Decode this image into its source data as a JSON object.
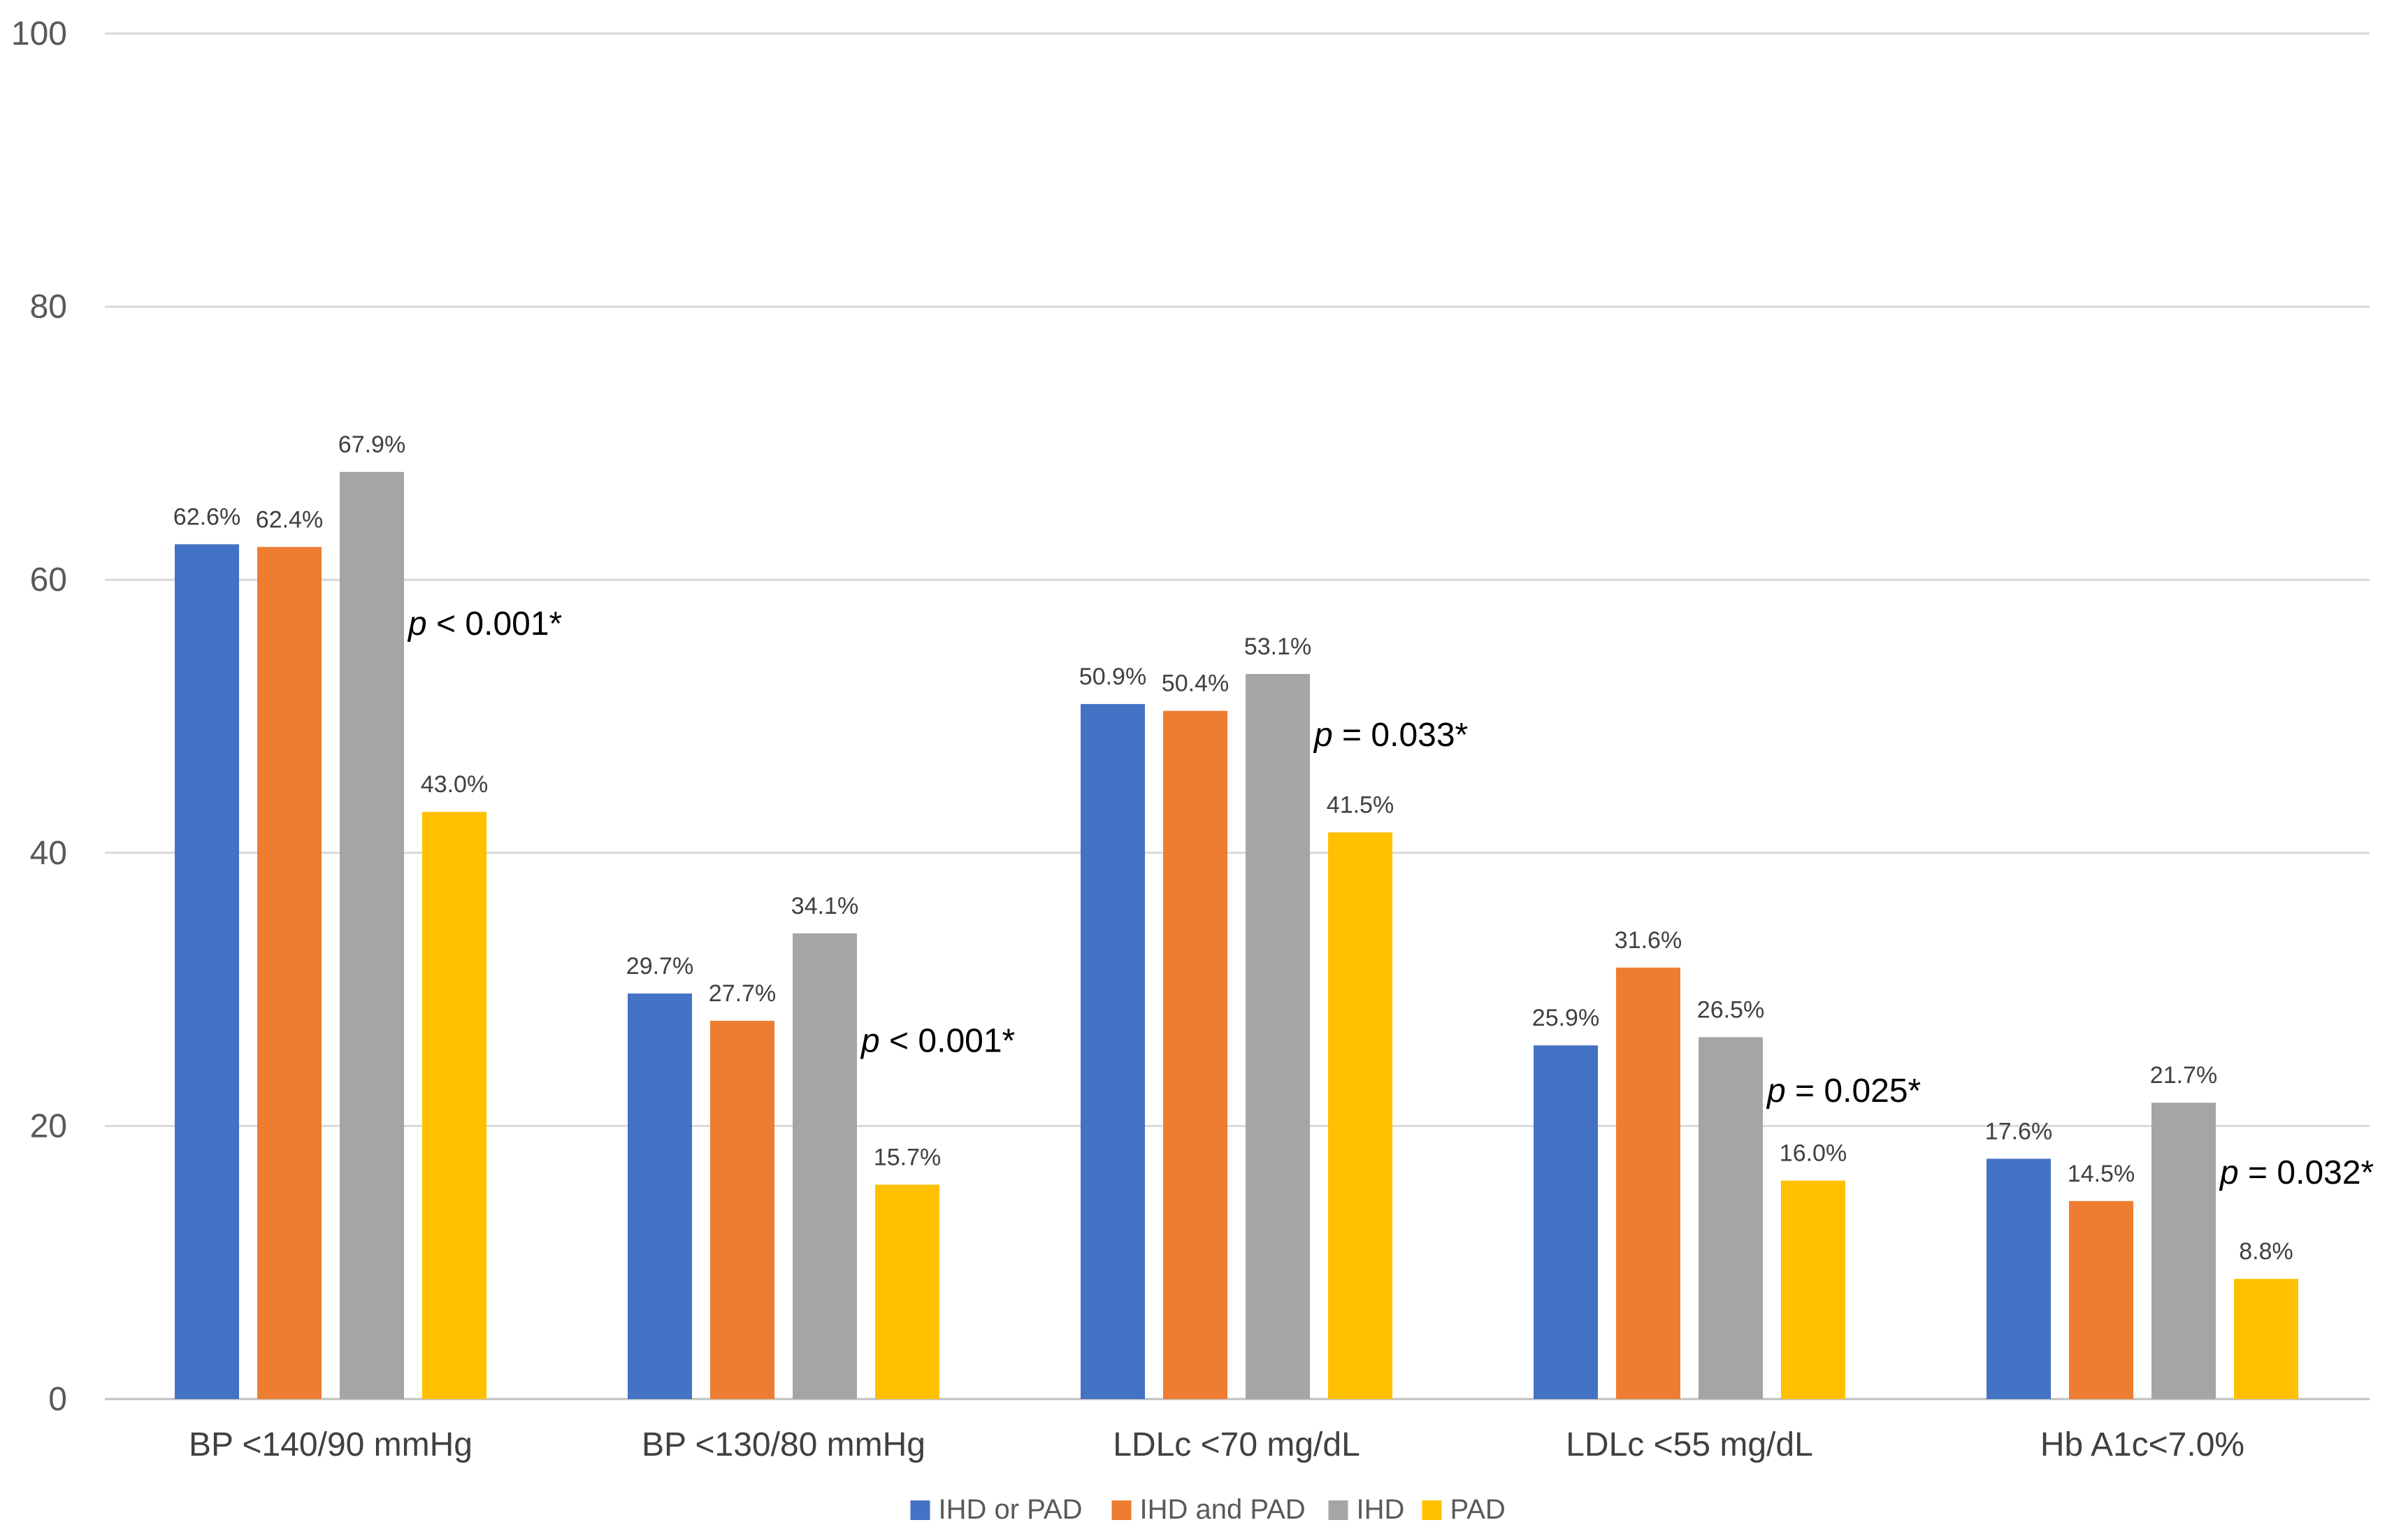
{
  "chart_data": {
    "type": "bar",
    "title": "",
    "xlabel": "",
    "ylabel": "",
    "ylim": [
      0,
      100
    ],
    "yticks": [
      0,
      20,
      40,
      60,
      80,
      100
    ],
    "grid": true,
    "legend_position": "bottom",
    "categories": [
      "BP <140/90 mmHg",
      "BP <130/80 mmHg",
      "LDLc <70 mg/dL",
      "LDLc <55 mg/dL",
      "Hb A1c<7.0%"
    ],
    "series": [
      {
        "name": "IHD or PAD",
        "color": "#4472c4",
        "values": [
          62.6,
          29.7,
          50.9,
          25.9,
          17.6
        ],
        "labels": [
          "62.6%",
          "29.7%",
          "50.9%",
          "25.9%",
          "17.6%"
        ]
      },
      {
        "name": "IHD and PAD",
        "color": "#ed7d31",
        "values": [
          62.4,
          27.7,
          50.4,
          31.6,
          14.5
        ],
        "labels": [
          "62.4%",
          "27.7%",
          "50.4%",
          "31.6%",
          "14.5%"
        ]
      },
      {
        "name": "IHD",
        "color": "#a5a5a5",
        "values": [
          67.9,
          34.1,
          53.1,
          26.5,
          21.7
        ],
        "labels": [
          "67.9%",
          "34.1%",
          "53.1%",
          "26.5%",
          "21.7%"
        ]
      },
      {
        "name": "PAD",
        "color": "#ffc000",
        "values": [
          43.0,
          15.7,
          41.5,
          16.0,
          8.8
        ],
        "labels": [
          "43.0%",
          "15.7%",
          "41.5%",
          "16.0%",
          "8.8%"
        ]
      }
    ],
    "annotations": [
      {
        "category_index": 0,
        "p_symbol": "p",
        "text": " < 0.001*"
      },
      {
        "category_index": 1,
        "p_symbol": "p",
        "text": " < 0.001*"
      },
      {
        "category_index": 2,
        "p_symbol": "p",
        "text": " = 0.033*"
      },
      {
        "category_index": 3,
        "p_symbol": "p",
        "text": " = 0.025*"
      },
      {
        "category_index": 4,
        "p_symbol": "p",
        "text": " = 0.032*"
      }
    ]
  }
}
